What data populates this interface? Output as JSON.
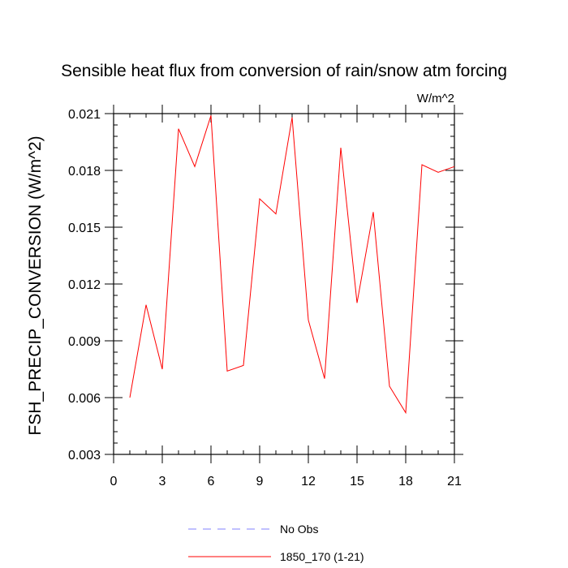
{
  "chart_data": {
    "type": "line",
    "title": "Sensible heat flux from conversion of rain/snow atm forcing",
    "units": "W/m^2",
    "ylabel": "FSH_PRECIP_CONVERSION  (W/m^2)",
    "xlabel": "",
    "xlim": [
      0,
      21
    ],
    "ylim": [
      0.003,
      0.021
    ],
    "xticks": [
      "0",
      "3",
      "6",
      "9",
      "12",
      "15",
      "18",
      "21"
    ],
    "yticks": [
      "0.003",
      "0.006",
      "0.009",
      "0.012",
      "0.015",
      "0.018",
      "0.021"
    ],
    "series": [
      {
        "name": "1850_170 (1-21)",
        "color": "#ff0000",
        "x": [
          1,
          2,
          3,
          4,
          5,
          6,
          7,
          8,
          9,
          10,
          11,
          12,
          13,
          14,
          15,
          16,
          17,
          18,
          19,
          20,
          21
        ],
        "values": [
          0.006,
          0.0109,
          0.0075,
          0.0202,
          0.0182,
          0.0209,
          0.0074,
          0.0077,
          0.0165,
          0.0157,
          0.0208,
          0.0101,
          0.007,
          0.0192,
          0.011,
          0.0158,
          0.0066,
          0.0052,
          0.0183,
          0.0179,
          0.0182
        ]
      }
    ],
    "legend": [
      {
        "label": "No Obs",
        "color": "#8080ff",
        "style": "dashed"
      },
      {
        "label": "1850_170 (1-21)",
        "color": "#ff0000",
        "style": "solid"
      }
    ]
  }
}
